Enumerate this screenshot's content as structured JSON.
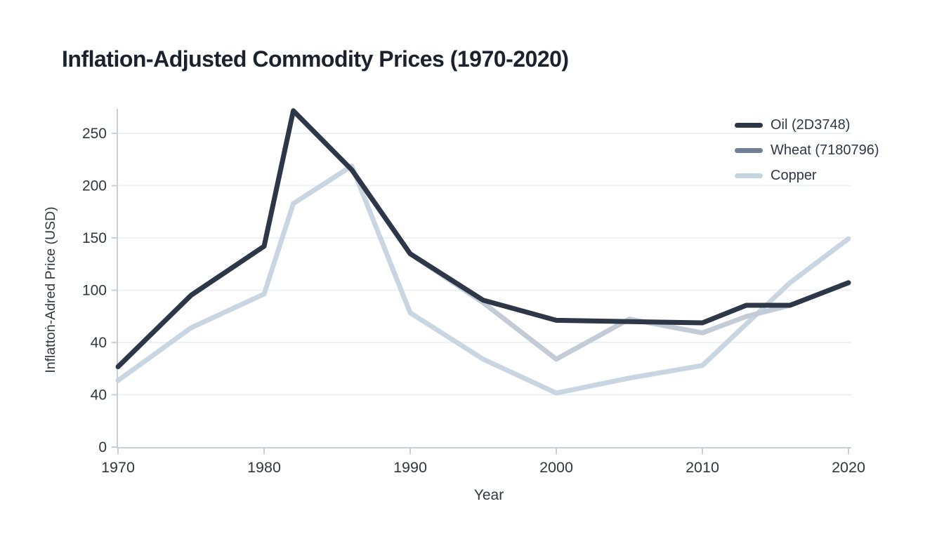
{
  "chart_data": {
    "type": "line",
    "title": "Inflation-Adjusted Commodity Prices (1970-2020)",
    "xlabel": "Year",
    "ylabel": "Inflattoṅ-Adred Price (USD)",
    "xlim": [
      1970,
      2020
    ],
    "ylim": [
      0,
      250
    ],
    "grid": true,
    "legend_position": "top-right",
    "x_tick_labels": [
      "1970",
      "1980",
      "1990",
      "2000",
      "2010",
      "2020"
    ],
    "x_tick_years": [
      1970,
      1980,
      1990,
      2000,
      2010,
      2020
    ],
    "y_tick_labels_bottom_to_top": [
      "0",
      "40",
      "40",
      "100",
      "150",
      "200",
      "250"
    ],
    "x": [
      1970,
      1975,
      1980,
      1982,
      1986,
      1990,
      1995,
      2000,
      2005,
      2010,
      2013,
      2016,
      2020
    ],
    "series": [
      {
        "name": "Oil (2D3748)",
        "color": "#2D3748",
        "line_color": "#2D3748",
        "values": [
          64,
          121,
          160,
          268,
          221,
          154,
          117,
          101,
          100,
          99,
          113,
          113,
          131
        ]
      },
      {
        "name": "Wheat (7180796)",
        "color": "#718096",
        "line_color": "#C3CBD6",
        "values": [
          64,
          121,
          160,
          268,
          221,
          154,
          115,
          70,
          102,
          91,
          104,
          113,
          131
        ]
      },
      {
        "name": "Copper",
        "color": "#C6D4E2",
        "line_color": "#C9D6E2",
        "values": [
          53,
          95,
          122,
          194,
          224,
          107,
          70,
          43,
          55,
          65,
          98,
          131,
          166
        ]
      }
    ],
    "axis_color": "#C9CFD7",
    "gridline_color": "#EEF1F4",
    "tick_label_color": "#30373F",
    "title_color": "#1B222D"
  }
}
